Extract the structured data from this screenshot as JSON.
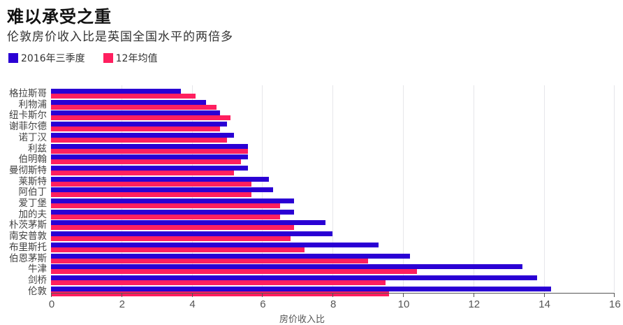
{
  "title": "难以承受之重",
  "subtitle": "伦敦房价收入比是英国全国水平的两倍多",
  "legend": [
    {
      "label": "2016年三季度",
      "color": "#2a00d4"
    },
    {
      "label": "12年均值",
      "color": "#ff1f5f"
    }
  ],
  "colors": {
    "series1": "#2a00d4",
    "series2": "#ff1f5f",
    "grid": "#e6e6ea",
    "axis": "#555555"
  },
  "chart_data": {
    "type": "bar",
    "orientation": "horizontal",
    "title": "难以承受之重",
    "subtitle": "伦敦房价收入比是英国全国水平的两倍多",
    "xlabel": "房价收入比",
    "ylabel": "",
    "xlim": [
      0,
      16
    ],
    "xticks": [
      0,
      2,
      4,
      6,
      8,
      10,
      12,
      14,
      16
    ],
    "grid": true,
    "legend_position": "top-left",
    "categories": [
      "格拉斯哥",
      "利物浦",
      "纽卡斯尔",
      "谢菲尔德",
      "诺丁汉",
      "利兹",
      "伯明翰",
      "曼彻斯特",
      "莱斯特",
      "阿伯丁",
      "爱丁堡",
      "加的夫",
      "朴茨茅斯",
      "南安普敦",
      "布里斯托",
      "伯恩茅斯",
      "牛津",
      "剑桥",
      "伦敦"
    ],
    "series": [
      {
        "name": "2016年三季度",
        "color": "#2a00d4",
        "values": [
          3.7,
          4.4,
          4.8,
          5.0,
          5.2,
          5.6,
          5.6,
          5.6,
          6.2,
          6.3,
          6.9,
          6.9,
          7.8,
          8.0,
          9.3,
          10.2,
          13.4,
          13.8,
          14.2
        ]
      },
      {
        "name": "12年均值",
        "color": "#ff1f5f",
        "values": [
          4.1,
          4.7,
          5.1,
          4.8,
          5.0,
          5.6,
          5.4,
          5.2,
          5.7,
          5.7,
          6.5,
          6.5,
          6.9,
          6.8,
          7.2,
          9.0,
          10.4,
          9.5,
          9.6
        ]
      }
    ]
  }
}
